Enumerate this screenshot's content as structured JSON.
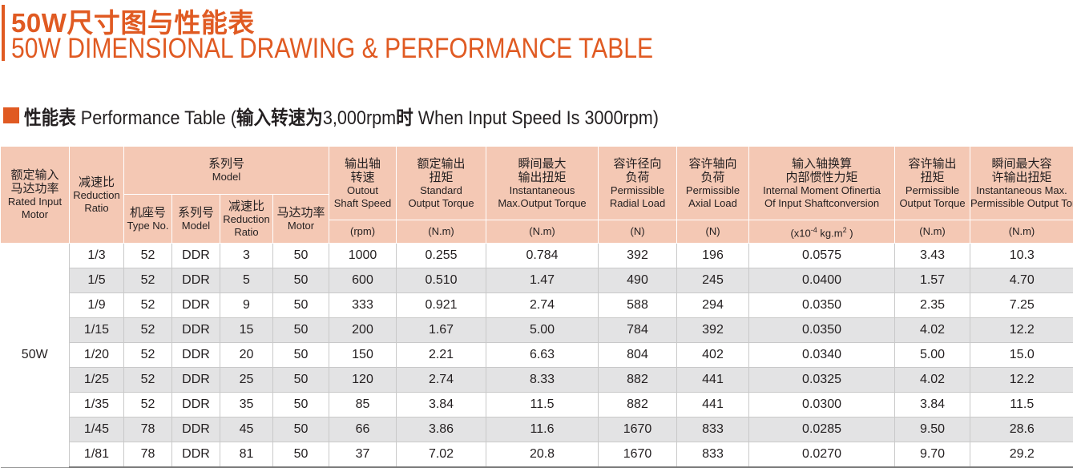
{
  "header": {
    "title_cn": "50W尺寸图与性能表",
    "title_en": "50W DIMENSIONAL DRAWING & PERFORMANCE TABLE",
    "accent_color": "#e05a22"
  },
  "section": {
    "cn1": "性能表",
    "en1": " Performance Table (",
    "cn2": "输入转速为",
    "mid": "3,000rpm",
    "cn3": "时",
    "en2": " When Input Speed Is 3000rpm)"
  },
  "table": {
    "header_bg": "#f4c8b4",
    "stripe_bg": "#e3e3e4",
    "col_rated": {
      "cn1": "额定输入",
      "cn2": "马达功率",
      "en1": "Rated Input",
      "en2": "Motor"
    },
    "col_ratio": {
      "cn": "减速比",
      "en1": "Reduction",
      "en2": "Ratio"
    },
    "model_group": {
      "cn": "系列号",
      "en": "Model"
    },
    "sub_type": {
      "cn": "机座号",
      "en": "Type No."
    },
    "sub_model": {
      "cn": "系列号",
      "en": "Model"
    },
    "sub_ratio": {
      "cn": "减速比",
      "en1": "Reduction",
      "en2": "Ratio"
    },
    "sub_motor": {
      "cn": "马达功率",
      "en": "Motor"
    },
    "col_speed": {
      "cn1": "输出轴",
      "cn2": "转速",
      "en1": "Outout",
      "en2": "Shaft Speed",
      "unit": "(rpm)"
    },
    "col_torque": {
      "cn1": "额定输出",
      "cn2": "扭矩",
      "en1": "Standard",
      "en2": "Output Torque",
      "unit": "(N.m)"
    },
    "col_inst": {
      "cn1": "瞬间最大",
      "cn2": "输出扭矩",
      "en1": "Instantaneous",
      "en2": "Max.Output Torque",
      "unit": "(N.m)"
    },
    "col_radial": {
      "cn1": "容许径向",
      "cn2": "负荷",
      "en1": "Permissible",
      "en2": "Radial Load",
      "unit": "(N)"
    },
    "col_axial": {
      "cn1": "容许轴向",
      "cn2": "负荷",
      "en1": "Permissible",
      "en2": "Axial Load",
      "unit": "(N)"
    },
    "col_inertia": {
      "cn1": "输入轴换算",
      "cn2": "内部惯性力矩",
      "en1": "Internal Moment Ofinertia",
      "en2": "Of Input Shaftconversion",
      "unit_a": "(x10",
      "unit_sup": "-4",
      "unit_b": " kg.m",
      "unit_sup2": "2",
      "unit_c": " )"
    },
    "col_perm": {
      "cn1": "容许输出",
      "cn2": "扭矩",
      "en1": "Permissible",
      "en2": "Output Torque",
      "unit": "(N.m)"
    },
    "col_maxperm": {
      "cn1": "瞬间最大容",
      "cn2": "许输出扭矩",
      "en1": "Instantaneous Max.",
      "en2": "Permissible Output Torque",
      "unit": "(N.m)"
    },
    "motor_label": "50W",
    "rows": [
      {
        "ratio": "1/3",
        "type": "52",
        "model": "DDR",
        "red": "3",
        "motor": "50",
        "speed": "1000",
        "torque": "0.255",
        "inst": "0.784",
        "radial": "392",
        "axial": "196",
        "inertia": "0.0575",
        "perm": "3.43",
        "maxperm": "10.3"
      },
      {
        "ratio": "1/5",
        "type": "52",
        "model": "DDR",
        "red": "5",
        "motor": "50",
        "speed": "600",
        "torque": "0.510",
        "inst": "1.47",
        "radial": "490",
        "axial": "245",
        "inertia": "0.0400",
        "perm": "1.57",
        "maxperm": "4.70"
      },
      {
        "ratio": "1/9",
        "type": "52",
        "model": "DDR",
        "red": "9",
        "motor": "50",
        "speed": "333",
        "torque": "0.921",
        "inst": "2.74",
        "radial": "588",
        "axial": "294",
        "inertia": "0.0350",
        "perm": "2.35",
        "maxperm": "7.25"
      },
      {
        "ratio": "1/15",
        "type": "52",
        "model": "DDR",
        "red": "15",
        "motor": "50",
        "speed": "200",
        "torque": "1.67",
        "inst": "5.00",
        "radial": "784",
        "axial": "392",
        "inertia": "0.0350",
        "perm": "4.02",
        "maxperm": "12.2"
      },
      {
        "ratio": "1/20",
        "type": "52",
        "model": "DDR",
        "red": "20",
        "motor": "50",
        "speed": "150",
        "torque": "2.21",
        "inst": "6.63",
        "radial": "804",
        "axial": "402",
        "inertia": "0.0340",
        "perm": "5.00",
        "maxperm": "15.0"
      },
      {
        "ratio": "1/25",
        "type": "52",
        "model": "DDR",
        "red": "25",
        "motor": "50",
        "speed": "120",
        "torque": "2.74",
        "inst": "8.33",
        "radial": "882",
        "axial": "441",
        "inertia": "0.0325",
        "perm": "4.02",
        "maxperm": "12.2"
      },
      {
        "ratio": "1/35",
        "type": "52",
        "model": "DDR",
        "red": "35",
        "motor": "50",
        "speed": "85",
        "torque": "3.84",
        "inst": "11.5",
        "radial": "882",
        "axial": "441",
        "inertia": "0.0300",
        "perm": "3.84",
        "maxperm": "11.5"
      },
      {
        "ratio": "1/45",
        "type": "78",
        "model": "DDR",
        "red": "45",
        "motor": "50",
        "speed": "66",
        "torque": "3.86",
        "inst": "11.6",
        "radial": "1670",
        "axial": "833",
        "inertia": "0.0285",
        "perm": "9.50",
        "maxperm": "28.6"
      },
      {
        "ratio": "1/81",
        "type": "78",
        "model": "DDR",
        "red": "81",
        "motor": "50",
        "speed": "37",
        "torque": "7.02",
        "inst": "20.8",
        "radial": "1670",
        "axial": "833",
        "inertia": "0.0270",
        "perm": "9.70",
        "maxperm": "29.2"
      }
    ]
  }
}
